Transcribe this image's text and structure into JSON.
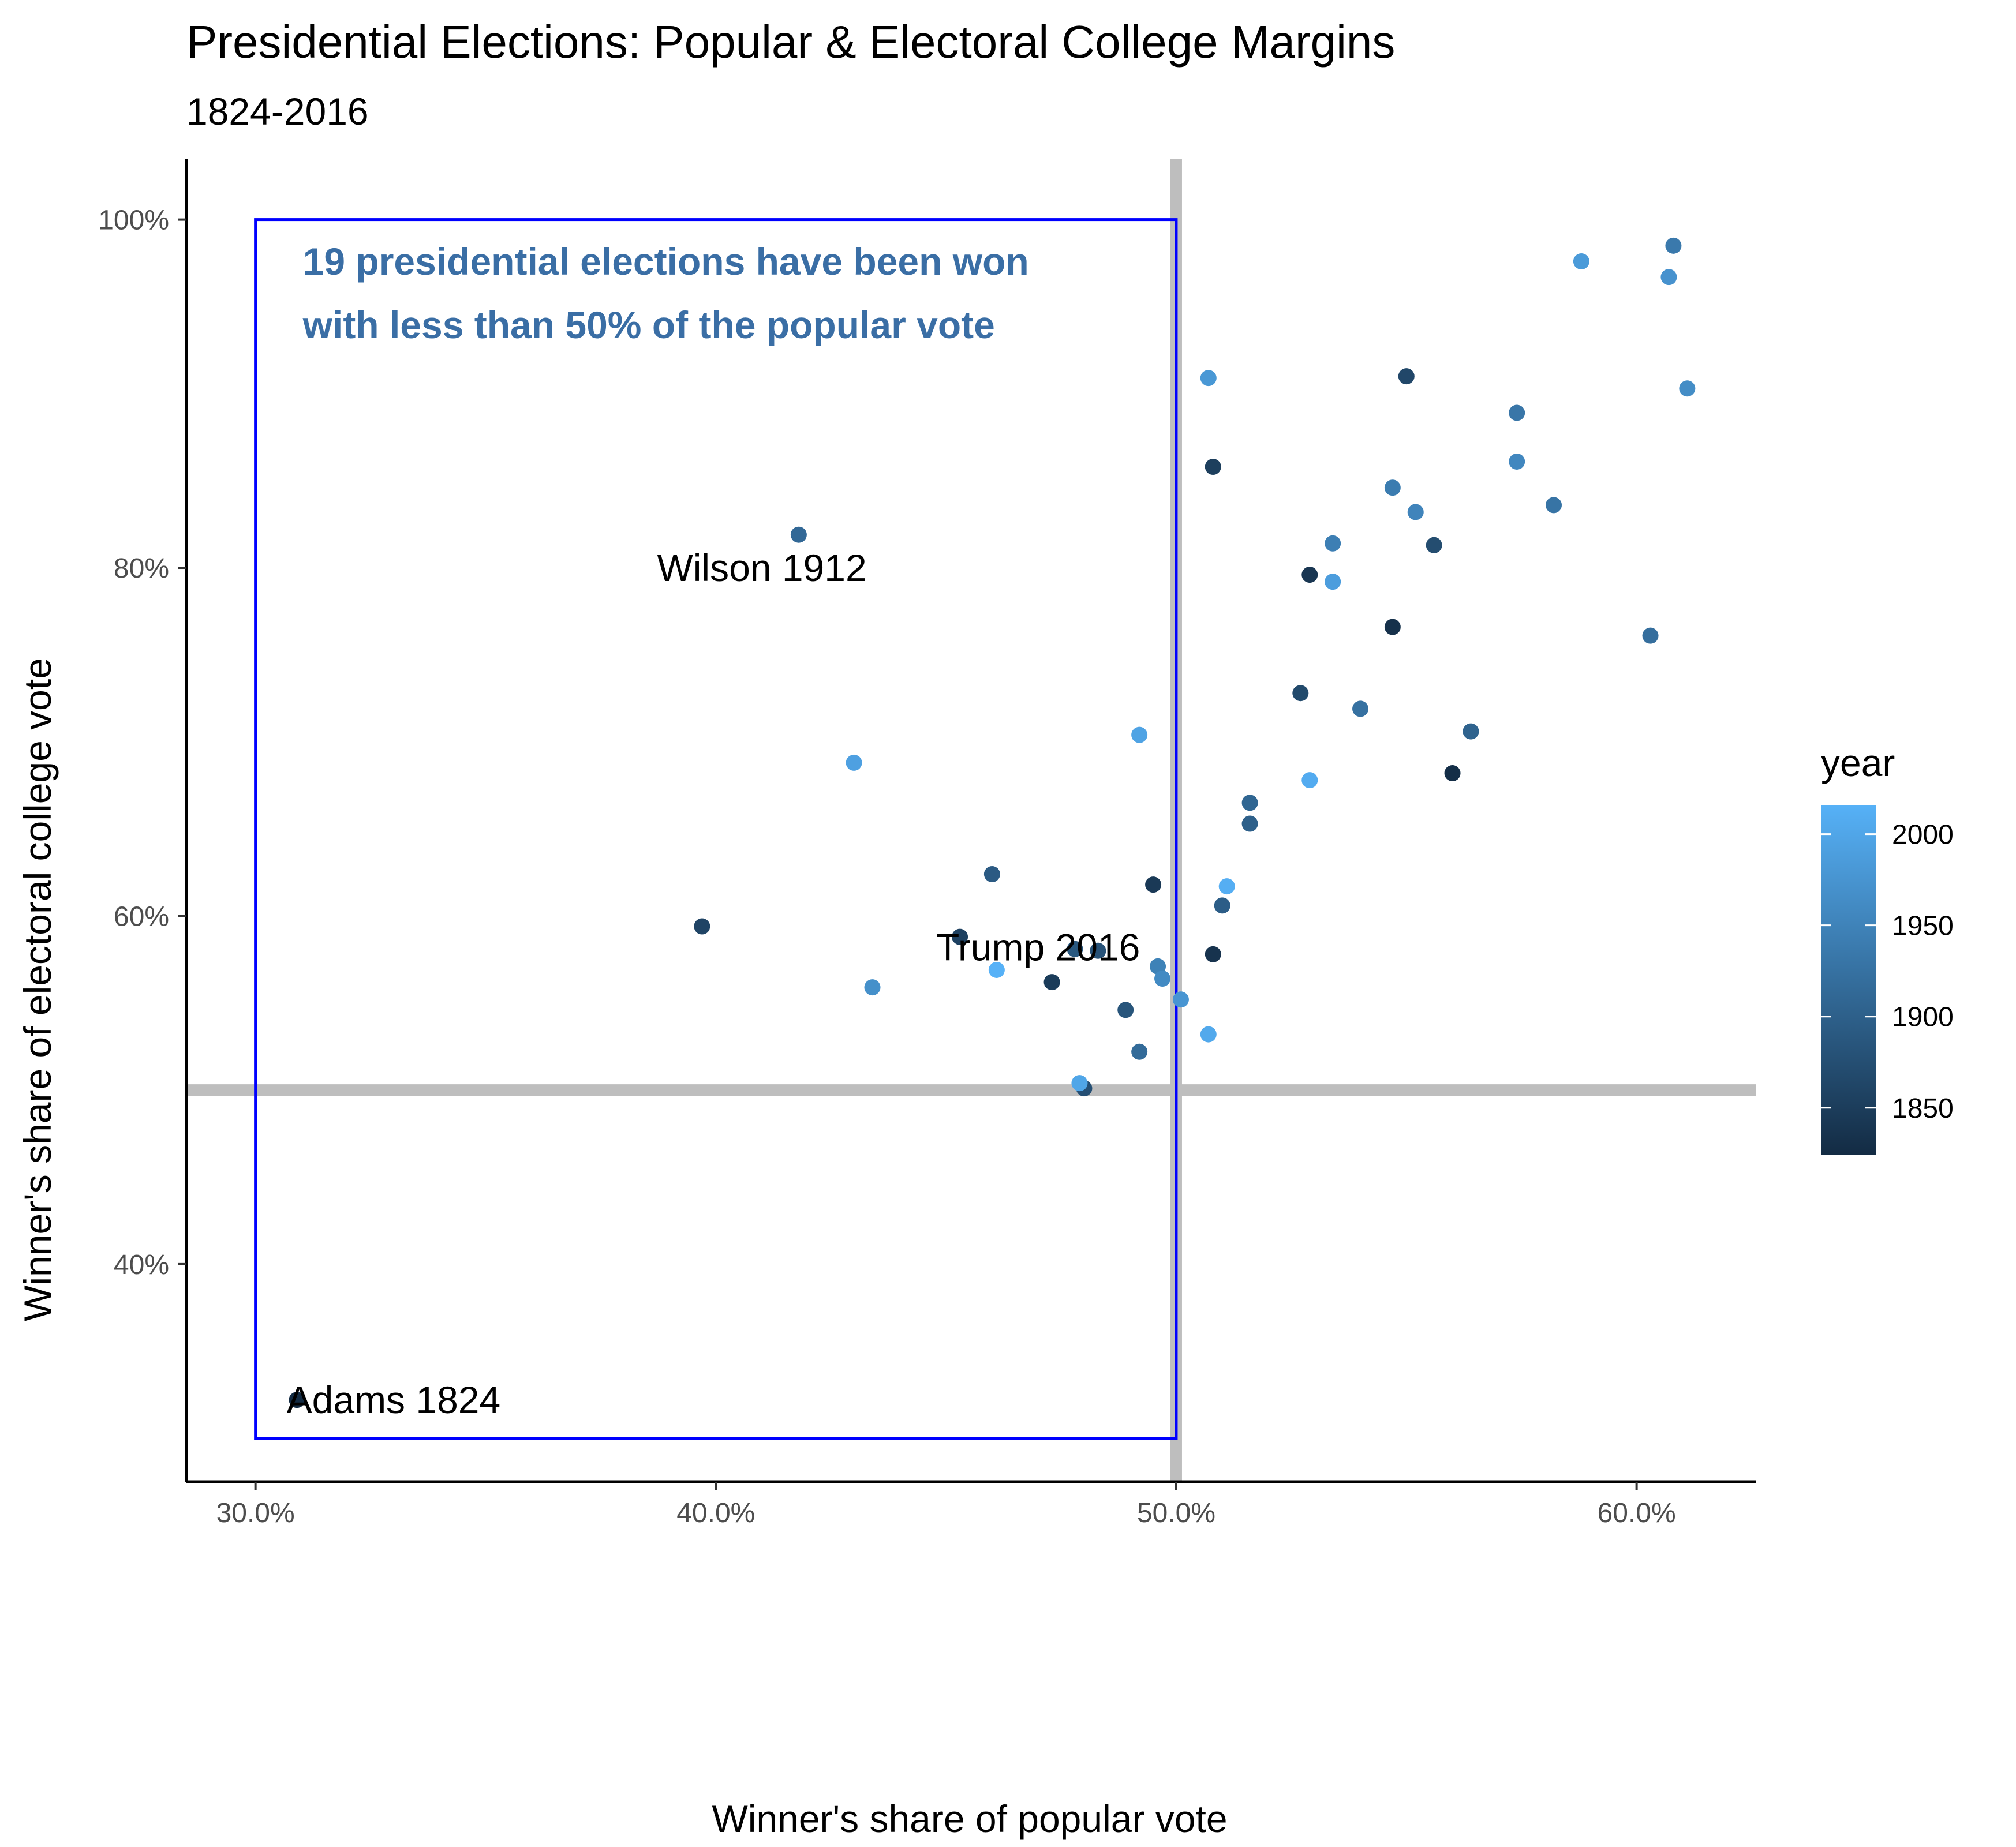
{
  "chart_data": {
    "type": "scatter",
    "title": "Presidential Elections: Popular & Electoral College Margins",
    "subtitle": "1824-2016",
    "xlabel": "Winner's share of popular vote",
    "ylabel": "Winner's share of electoral college vote",
    "xlim": [
      28.5,
      62.6
    ],
    "ylim": [
      27.5,
      103.5
    ],
    "x_ticks": [
      30,
      40,
      50,
      60
    ],
    "x_tick_labels": [
      "30.0%",
      "40.0%",
      "50.0%",
      "60.0%"
    ],
    "y_ticks": [
      40,
      60,
      80,
      100
    ],
    "y_tick_labels": [
      "40%",
      "60%",
      "80%",
      "100%"
    ],
    "reference_lines": {
      "x": 50,
      "y": 50
    },
    "grid": false,
    "highlight_box": {
      "x": [
        30,
        50
      ],
      "y": [
        30,
        100
      ],
      "color": "#0000ff"
    },
    "note": {
      "lines": [
        "19 presidential elections have been won",
        "with less than 50% of the popular vote"
      ],
      "color": "#3a6ea5"
    },
    "annotations": [
      {
        "text": "Wilson 1912",
        "x": 41,
        "y": 80
      },
      {
        "text": "Trump 2016",
        "x": 47,
        "y": 58.2
      },
      {
        "text": "Adams 1824",
        "x": 33,
        "y": 32.2
      }
    ],
    "legend": {
      "title": "year",
      "position": "right",
      "ticks": [
        1850,
        1900,
        1950,
        2000
      ],
      "range": [
        1824,
        2016
      ],
      "color_low": "#132b43",
      "color_high": "#56b1f7"
    },
    "points": [
      {
        "x": 30.9,
        "y": 32.2,
        "year": 1824
      },
      {
        "x": 56.0,
        "y": 68.2,
        "year": 1828
      },
      {
        "x": 54.7,
        "y": 76.6,
        "year": 1832
      },
      {
        "x": 50.8,
        "y": 57.8,
        "year": 1836
      },
      {
        "x": 52.9,
        "y": 79.6,
        "year": 1840
      },
      {
        "x": 49.5,
        "y": 61.8,
        "year": 1844
      },
      {
        "x": 47.3,
        "y": 56.2,
        "year": 1848
      },
      {
        "x": 50.8,
        "y": 85.8,
        "year": 1852
      },
      {
        "x": 45.3,
        "y": 58.8,
        "year": 1856
      },
      {
        "x": 39.7,
        "y": 59.4,
        "year": 1860
      },
      {
        "x": 55.0,
        "y": 91.0,
        "year": 1864
      },
      {
        "x": 52.7,
        "y": 72.8,
        "year": 1868
      },
      {
        "x": 55.6,
        "y": 81.3,
        "year": 1872
      },
      {
        "x": 48.0,
        "y": 50.1,
        "year": 1876
      },
      {
        "x": 48.3,
        "y": 58.0,
        "year": 1880
      },
      {
        "x": 48.9,
        "y": 54.6,
        "year": 1884
      },
      {
        "x": 47.8,
        "y": 58.1,
        "year": 1888
      },
      {
        "x": 46.0,
        "y": 62.4,
        "year": 1892
      },
      {
        "x": 51.0,
        "y": 60.6,
        "year": 1896
      },
      {
        "x": 51.6,
        "y": 65.3,
        "year": 1900
      },
      {
        "x": 56.4,
        "y": 70.6,
        "year": 1904
      },
      {
        "x": 51.6,
        "y": 66.5,
        "year": 1908
      },
      {
        "x": 41.8,
        "y": 81.9,
        "year": 1912
      },
      {
        "x": 49.2,
        "y": 52.2,
        "year": 1916
      },
      {
        "x": 60.3,
        "y": 76.1,
        "year": 1920
      },
      {
        "x": 54.0,
        "y": 71.9,
        "year": 1924
      },
      {
        "x": 58.2,
        "y": 83.6,
        "year": 1928
      },
      {
        "x": 57.4,
        "y": 88.9,
        "year": 1932
      },
      {
        "x": 60.8,
        "y": 98.5,
        "year": 1936
      },
      {
        "x": 54.7,
        "y": 84.6,
        "year": 1940
      },
      {
        "x": 53.4,
        "y": 81.4,
        "year": 1944
      },
      {
        "x": 49.6,
        "y": 57.1,
        "year": 1948
      },
      {
        "x": 55.2,
        "y": 83.2,
        "year": 1952
      },
      {
        "x": 57.4,
        "y": 86.1,
        "year": 1956
      },
      {
        "x": 49.7,
        "y": 56.4,
        "year": 1960
      },
      {
        "x": 61.1,
        "y": 90.3,
        "year": 1964
      },
      {
        "x": 43.4,
        "y": 55.9,
        "year": 1968
      },
      {
        "x": 60.7,
        "y": 96.7,
        "year": 1972
      },
      {
        "x": 50.1,
        "y": 55.2,
        "year": 1976
      },
      {
        "x": 50.7,
        "y": 90.9,
        "year": 1980
      },
      {
        "x": 58.8,
        "y": 97.6,
        "year": 1984
      },
      {
        "x": 53.4,
        "y": 79.2,
        "year": 1988
      },
      {
        "x": 43.0,
        "y": 68.8,
        "year": 1992
      },
      {
        "x": 49.2,
        "y": 70.4,
        "year": 1996
      },
      {
        "x": 47.9,
        "y": 50.4,
        "year": 2000
      },
      {
        "x": 50.7,
        "y": 53.2,
        "year": 2004
      },
      {
        "x": 52.9,
        "y": 67.8,
        "year": 2008
      },
      {
        "x": 51.1,
        "y": 61.7,
        "year": 2012
      },
      {
        "x": 46.1,
        "y": 56.9,
        "year": 2016
      }
    ]
  }
}
